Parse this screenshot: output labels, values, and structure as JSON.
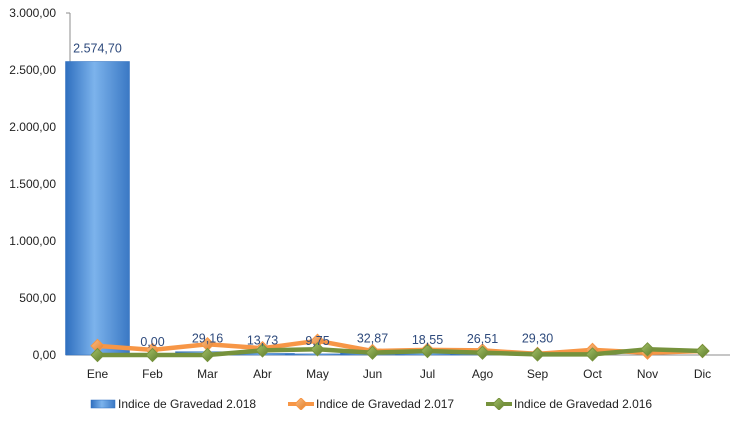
{
  "chart_data": {
    "type": "bar",
    "categories": [
      "Ene",
      "Feb",
      "Mar",
      "Abr",
      "May",
      "Jun",
      "Jul",
      "Ago",
      "Sep",
      "Oct",
      "Nov",
      "Dic"
    ],
    "ylim": [
      0,
      3000
    ],
    "yticks": [
      "0,00",
      "500,00",
      "1.000,00",
      "1.500,00",
      "2.000,00",
      "2.500,00",
      "3.000,00"
    ],
    "grid": false,
    "legend_position": "bottom",
    "series": [
      {
        "name": "Indice de Gravedad 2.018",
        "kind": "bar",
        "color": "#4f8fd6",
        "values": [
          2574.7,
          0.0,
          29.16,
          13.73,
          9.75,
          32.87,
          18.55,
          26.51,
          29.3,
          null,
          null,
          null
        ],
        "labels": [
          "2.574,70",
          "0,00",
          "29,16",
          "13,73",
          "9,75",
          "32,87",
          "18,55",
          "26,51",
          "29,30",
          "",
          "",
          ""
        ]
      },
      {
        "name": "Indice de Gravedad 2.017",
        "kind": "line",
        "color": "#f79646",
        "values": [
          80,
          45,
          95,
          60,
          125,
          35,
          45,
          40,
          10,
          45,
          20,
          35
        ]
      },
      {
        "name": "Indice de Gravedad 2.016",
        "kind": "line",
        "color": "#76923c",
        "values": [
          0,
          0,
          0,
          40,
          50,
          20,
          35,
          20,
          5,
          5,
          50,
          35
        ]
      }
    ]
  }
}
